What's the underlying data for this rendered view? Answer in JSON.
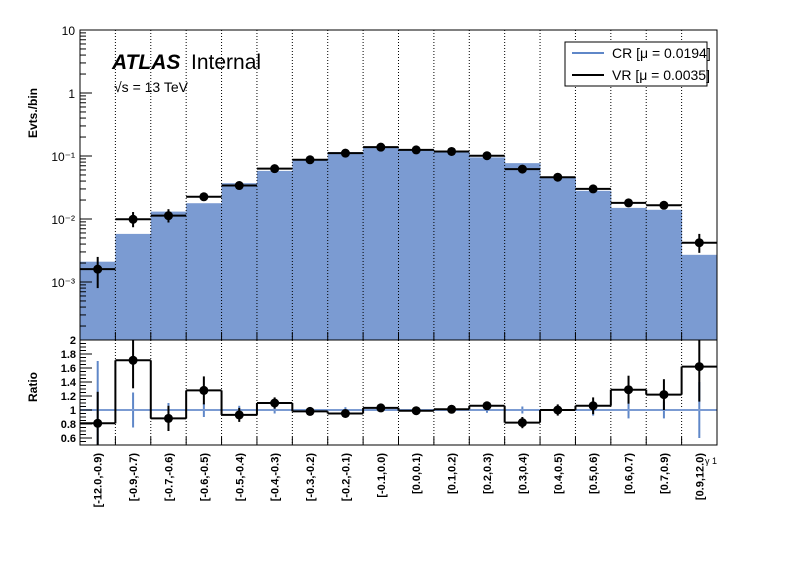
{
  "chart_data": {
    "type": "bar",
    "colors": {
      "cr": "#7b9bd2",
      "cr_line": "#5f87c8",
      "vr": "#000000",
      "unity_line": "#7b9bd2"
    },
    "atlas_label": "ATLAS",
    "internal_label": "Internal",
    "energy_label": "√s = 13 TeV",
    "ylabel_top": "Evts./bin",
    "ylabel_bottom": "Ratio",
    "xlabel": "γ 1",
    "upper_scale": "log",
    "upper_ylim": [
      0.00012,
      10
    ],
    "upper_ticks": [
      {
        "v": 10,
        "label": "10"
      },
      {
        "v": 1,
        "label": "1"
      },
      {
        "v": 0.1,
        "label": "10⁻¹"
      },
      {
        "v": 0.01,
        "label": "10⁻²"
      },
      {
        "v": 0.001,
        "label": "10⁻³"
      }
    ],
    "lower_ylim": [
      0.5,
      2.0
    ],
    "lower_ticks": [
      "0.6",
      "0.8",
      "1",
      "1.2",
      "1.4",
      "1.6",
      "1.8",
      "2"
    ],
    "categories": [
      "[-12.0,-0.9)",
      "[-0.9,-0.7)",
      "[-0.7,-0.6)",
      "[-0.6,-0.5)",
      "[-0.5,-0.4)",
      "[-0.4,-0.3)",
      "[-0.3,-0.2)",
      "[-0.2,-0.1)",
      "[-0.1,0.0)",
      "[0.0,0.1)",
      "[0.1,0.2)",
      "[0.2,0.3)",
      "[0.3,0.4)",
      "[0.4,0.5)",
      "[0.5,0.6)",
      "[0.6,0.7)",
      "[0.7,0.9)",
      "[0.9,12.0)"
    ],
    "series": [
      {
        "name": "CR [μ = 0.0194]",
        "style": "filled",
        "values": [
          0.0021,
          0.0058,
          0.0131,
          0.0178,
          0.037,
          0.058,
          0.088,
          0.115,
          0.134,
          0.127,
          0.117,
          0.095,
          0.077,
          0.046,
          0.028,
          0.015,
          0.014,
          0.0027
        ]
      },
      {
        "name": "VR [μ = 0.0035]",
        "style": "points",
        "values": [
          0.0016,
          0.0099,
          0.0113,
          0.0225,
          0.034,
          0.063,
          0.087,
          0.111,
          0.138,
          0.125,
          0.118,
          0.101,
          0.062,
          0.046,
          0.03,
          0.018,
          0.0165,
          0.0042
        ],
        "err_low": [
          0.0008,
          0.0025,
          0.0025,
          0.0028,
          0.003,
          0.004,
          0.005,
          0.006,
          0.006,
          0.006,
          0.005,
          0.005,
          0.004,
          0.003,
          0.003,
          0.002,
          0.002,
          0.0013
        ],
        "err_high": [
          0.0009,
          0.003,
          0.003,
          0.0033,
          0.003,
          0.004,
          0.005,
          0.006,
          0.006,
          0.006,
          0.005,
          0.005,
          0.004,
          0.003,
          0.003,
          0.002,
          0.002,
          0.0016
        ]
      }
    ],
    "ratio": {
      "values": [
        0.81,
        1.71,
        0.88,
        1.28,
        0.93,
        1.1,
        0.98,
        0.95,
        1.03,
        0.99,
        1.01,
        1.06,
        0.82,
        1.0,
        1.06,
        1.29,
        1.22,
        1.62
      ],
      "err_low": [
        0.45,
        0.4,
        0.18,
        0.2,
        0.1,
        0.08,
        0.06,
        0.05,
        0.04,
        0.04,
        0.05,
        0.06,
        0.08,
        0.08,
        0.12,
        0.2,
        0.22,
        0.5
      ],
      "err_high": [
        0.45,
        0.4,
        0.18,
        0.2,
        0.1,
        0.08,
        0.06,
        0.05,
        0.04,
        0.04,
        0.05,
        0.06,
        0.08,
        0.08,
        0.12,
        0.2,
        0.22,
        0.5
      ],
      "cr_err": [
        0.7,
        0.25,
        0.1,
        0.1,
        0.06,
        0.05,
        0.04,
        0.04,
        0.03,
        0.03,
        0.03,
        0.04,
        0.05,
        0.06,
        0.08,
        0.12,
        0.12,
        0.4
      ]
    },
    "grid": "vertical-dotted",
    "legend_position": "top-right"
  }
}
